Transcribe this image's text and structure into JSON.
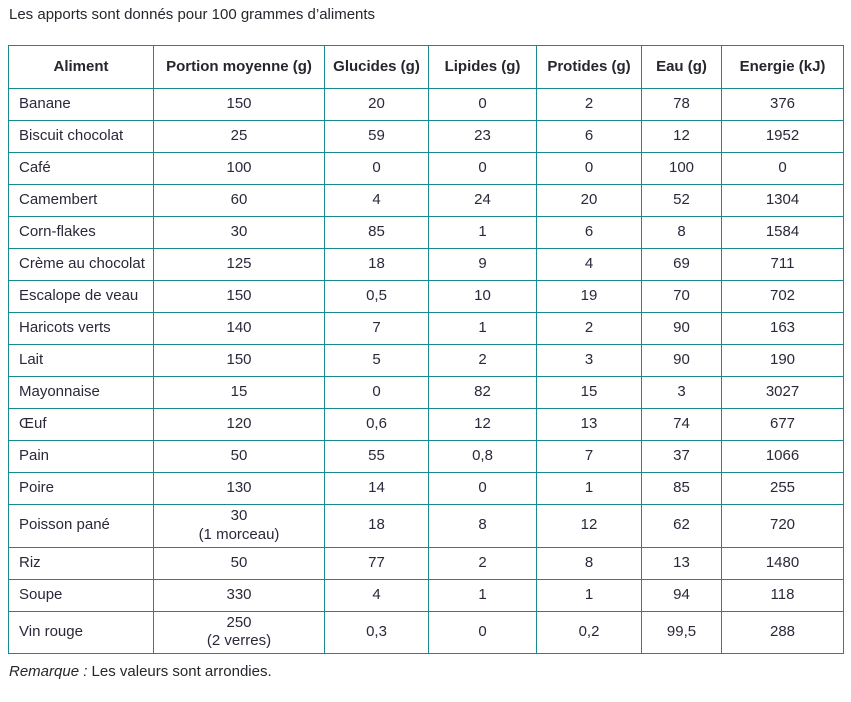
{
  "title": "Les apports sont donnés pour 100 grammes d’aliments",
  "table": {
    "columns": [
      "Aliment",
      "Portion moyenne (g)",
      "Glucides (g)",
      "Lipides (g)",
      "Protides (g)",
      "Eau (g)",
      "Energie (kJ)"
    ],
    "rows": [
      {
        "cells": [
          "Banane",
          "150",
          "20",
          "0",
          "2",
          "78",
          "376"
        ]
      },
      {
        "cells": [
          "Biscuit chocolat",
          "25",
          "59",
          "23",
          "6",
          "12",
          "1952"
        ]
      },
      {
        "cells": [
          "Café",
          "100",
          "0",
          "0",
          "0",
          "100",
          "0"
        ]
      },
      {
        "cells": [
          "Camembert",
          "60",
          "4",
          "24",
          "20",
          "52",
          "1304"
        ]
      },
      {
        "cells": [
          "Corn-flakes",
          "30",
          "85",
          "1",
          "6",
          "8",
          "1584"
        ]
      },
      {
        "cells": [
          "Crème au chocolat",
          "125",
          "18",
          "9",
          "4",
          "69",
          "711"
        ]
      },
      {
        "cells": [
          "Escalope de veau",
          "150",
          "0,5",
          "10",
          "19",
          "70",
          "702"
        ]
      },
      {
        "cells": [
          "Haricots verts",
          "140",
          "7",
          "1",
          "2",
          "90",
          "163"
        ]
      },
      {
        "cells": [
          "Lait",
          "150",
          "5",
          "2",
          "3",
          "90",
          "190"
        ]
      },
      {
        "cells": [
          "Mayonnaise",
          "15",
          "0",
          "82",
          "15",
          "3",
          "3027"
        ]
      },
      {
        "cells": [
          "Œuf",
          "120",
          "0,6",
          "12",
          "13",
          "74",
          "677"
        ]
      },
      {
        "cells": [
          "Pain",
          "50",
          "55",
          "0,8",
          "7",
          "37",
          "1066"
        ]
      },
      {
        "cells": [
          "Poire",
          "130",
          "14",
          "0",
          "1",
          "85",
          "255"
        ]
      },
      {
        "cells": [
          "Poisson pané",
          "30\n(1 morceau)",
          "18",
          "8",
          "12",
          "62",
          "720"
        ]
      },
      {
        "cells": [
          "Riz",
          "50",
          "77",
          "2",
          "8",
          "13",
          "1480"
        ]
      },
      {
        "cells": [
          "Soupe",
          "330",
          "4",
          "1",
          "1",
          "94",
          "118"
        ]
      },
      {
        "cells": [
          "Vin rouge",
          "250\n(2 verres)",
          "0,3",
          "0",
          "0,2",
          "99,5",
          "288"
        ]
      }
    ]
  },
  "note": {
    "label": "Remarque :",
    "text": " Les valeurs sont arrondies."
  },
  "colors": {
    "table_border": "#17898f",
    "text": "#29293a"
  }
}
